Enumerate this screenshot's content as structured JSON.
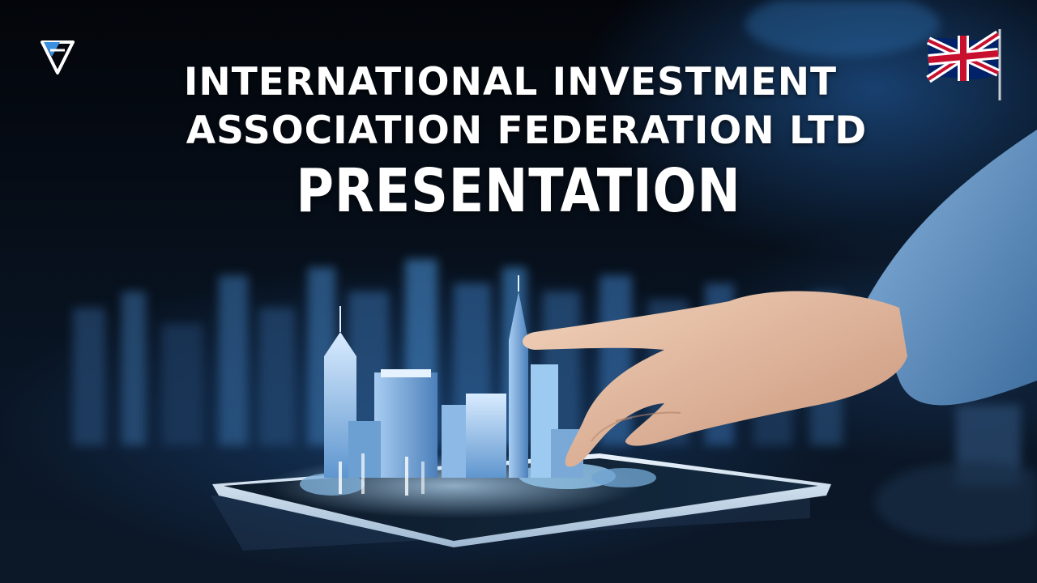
{
  "title": {
    "line1": "INTERNATIONAL INVESTMENT",
    "line2": "ASSOCIATION FEDERATION LTD",
    "line3": "PRESENTATION"
  },
  "graphics": {
    "logo_icon": "stylized-triangle-logo-icon",
    "flag_icon": "united-kingdom-flag-icon",
    "main_illustration": "hand-touching-tablet-with-holographic-city",
    "colors": {
      "background": "#05070c",
      "accent_blue": "#3a8fe0",
      "sleeve": "#5b8fc4",
      "text": "#ffffff"
    }
  }
}
